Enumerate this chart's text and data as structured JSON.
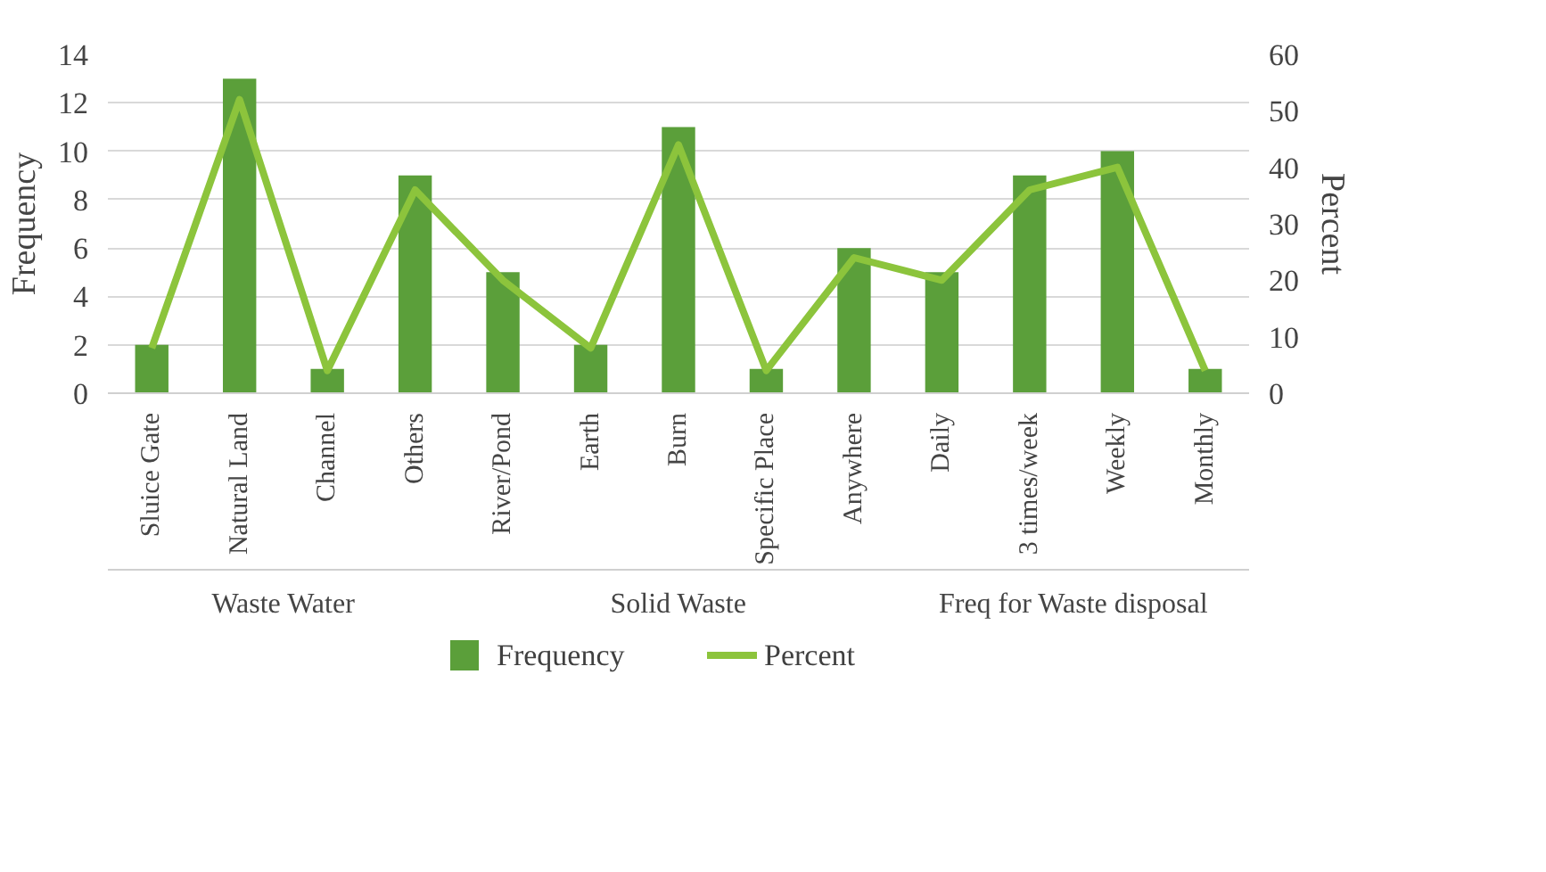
{
  "chart_data": {
    "type": "bar",
    "ylabel": "Frequency",
    "y2label": "Percent",
    "categories": [
      "Sluice Gate",
      "Natural Land",
      "Channel",
      "Others",
      "River/Pond",
      "Earth",
      "Burn",
      "Specific Place",
      "Anywhere",
      "Daily",
      "3 times/week",
      "Weekly",
      "Monthly"
    ],
    "series": [
      {
        "name": "Frequency",
        "color": "#5b9f3a",
        "values": [
          2,
          13,
          1,
          9,
          5,
          2,
          11,
          1,
          6,
          5,
          9,
          10,
          1
        ]
      },
      {
        "name": "Percent",
        "type": "line",
        "axis": "y2",
        "color": "#8cc43c",
        "values": [
          8,
          52,
          4,
          36,
          20,
          8,
          44,
          4,
          24,
          20,
          36,
          40,
          4
        ]
      }
    ],
    "ylim": [
      0,
      14
    ],
    "yticks": [
      0,
      2,
      4,
      6,
      8,
      10,
      12,
      14
    ],
    "y2lim": [
      0,
      60
    ],
    "y2ticks": [
      0,
      10,
      20,
      30,
      40,
      50,
      60
    ],
    "annotations": [
      "Waste Water",
      "Solid Waste",
      "Freq for Waste disposal"
    ],
    "grid": "y",
    "legend": "bottom"
  }
}
